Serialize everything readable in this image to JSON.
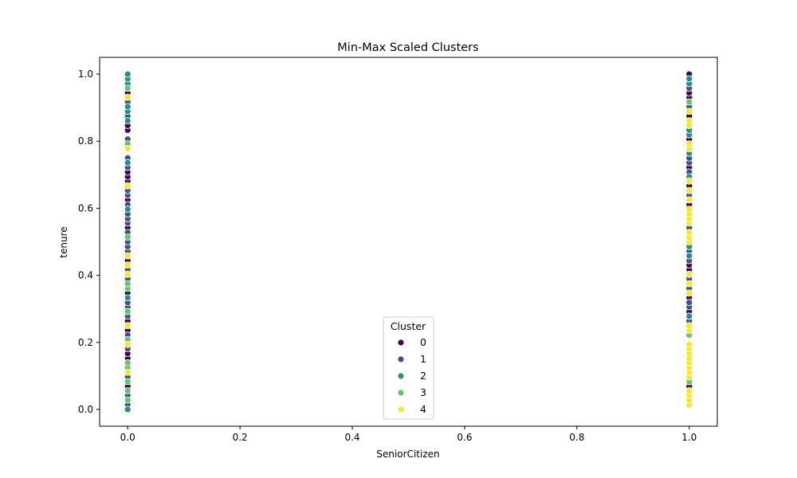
{
  "chart_data": {
    "type": "scatter",
    "title": "Min-Max Scaled Clusters",
    "xlabel": "SeniorCitizen",
    "ylabel": "tenure",
    "xlim": [
      -0.05,
      1.05
    ],
    "ylim": [
      -0.05,
      1.05
    ],
    "xticks": [
      0.0,
      0.2,
      0.4,
      0.6,
      0.8,
      1.0
    ],
    "xtick_labels": [
      "0.0",
      "0.2",
      "0.4",
      "0.6",
      "0.8",
      "1.0"
    ],
    "yticks": [
      0.0,
      0.2,
      0.4,
      0.6,
      0.8,
      1.0
    ],
    "ytick_labels": [
      "0.0",
      "0.2",
      "0.4",
      "0.6",
      "0.8",
      "1.0"
    ],
    "grid": false,
    "legend": {
      "title": "Cluster",
      "placement": "lower-center"
    },
    "series": [
      {
        "name": "0",
        "color": "#440154",
        "points": [
          [
            0,
            0.069
          ],
          [
            0,
            0.153
          ],
          [
            0,
            0.167
          ],
          [
            0,
            0.236
          ],
          [
            0,
            0.264
          ],
          [
            0,
            0.347
          ],
          [
            0,
            0.375
          ],
          [
            0,
            0.403
          ],
          [
            0,
            0.431
          ],
          [
            0,
            0.444
          ],
          [
            0,
            0.514
          ],
          [
            0,
            0.542
          ],
          [
            0,
            0.597
          ],
          [
            0,
            0.625
          ],
          [
            0,
            0.681
          ],
          [
            0,
            0.694
          ],
          [
            0,
            0.708
          ],
          [
            0,
            0.833
          ],
          [
            0,
            0.847
          ],
          [
            0,
            0.931
          ],
          [
            0,
            0.944
          ],
          [
            1,
            0.069
          ],
          [
            1,
            0.139
          ],
          [
            1,
            0.194
          ],
          [
            1,
            0.264
          ],
          [
            1,
            0.292
          ],
          [
            1,
            0.333
          ],
          [
            1,
            0.375
          ],
          [
            1,
            0.417
          ],
          [
            1,
            0.431
          ],
          [
            1,
            0.528
          ],
          [
            1,
            0.611
          ],
          [
            1,
            0.625
          ],
          [
            1,
            0.667
          ],
          [
            1,
            0.694
          ],
          [
            1,
            0.722
          ],
          [
            1,
            0.806
          ],
          [
            1,
            0.861
          ],
          [
            1,
            0.875
          ],
          [
            1,
            0.931
          ],
          [
            1,
            0.944
          ],
          [
            1,
            1.0
          ]
        ]
      },
      {
        "name": "1",
        "color": "#3b528b",
        "points": [
          [
            0,
            0.014
          ],
          [
            0,
            0.042
          ],
          [
            0,
            0.097
          ],
          [
            0,
            0.181
          ],
          [
            0,
            0.222
          ],
          [
            0,
            0.25
          ],
          [
            0,
            0.278
          ],
          [
            0,
            0.306
          ],
          [
            0,
            0.319
          ],
          [
            0,
            0.389
          ],
          [
            0,
            0.417
          ],
          [
            0,
            0.458
          ],
          [
            0,
            0.472
          ],
          [
            0,
            0.486
          ],
          [
            0,
            0.5
          ],
          [
            0,
            0.528
          ],
          [
            0,
            0.556
          ],
          [
            0,
            0.569
          ],
          [
            0,
            0.583
          ],
          [
            0,
            0.611
          ],
          [
            0,
            0.639
          ],
          [
            0,
            0.653
          ],
          [
            0,
            0.722
          ],
          [
            0,
            0.75
          ],
          [
            0,
            0.806
          ],
          [
            0,
            0.875
          ],
          [
            0,
            0.917
          ],
          [
            1,
            0.264
          ],
          [
            1,
            0.278
          ],
          [
            1,
            0.306
          ],
          [
            1,
            0.319
          ],
          [
            1,
            0.361
          ],
          [
            1,
            0.389
          ],
          [
            1,
            0.444
          ],
          [
            1,
            0.472
          ],
          [
            1,
            0.486
          ],
          [
            1,
            0.542
          ],
          [
            1,
            0.639
          ],
          [
            1,
            0.653
          ],
          [
            1,
            0.681
          ],
          [
            1,
            0.708
          ],
          [
            1,
            0.736
          ],
          [
            1,
            0.75
          ],
          [
            1,
            0.778
          ],
          [
            1,
            0.819
          ],
          [
            1,
            0.889
          ],
          [
            1,
            0.903
          ],
          [
            1,
            0.958
          ]
        ]
      },
      {
        "name": "2",
        "color": "#21918c",
        "points": [
          [
            0,
            0.0
          ],
          [
            0,
            0.333
          ],
          [
            0,
            0.597
          ],
          [
            0,
            0.736
          ],
          [
            0,
            0.792
          ],
          [
            0,
            0.861
          ],
          [
            0,
            0.889
          ],
          [
            0,
            0.903
          ],
          [
            0,
            0.958
          ],
          [
            0,
            0.972
          ],
          [
            0,
            0.986
          ],
          [
            0,
            1.0
          ],
          [
            1,
            0.083
          ],
          [
            1,
            0.278
          ],
          [
            1,
            0.458
          ],
          [
            1,
            0.486
          ],
          [
            1,
            0.694
          ],
          [
            1,
            0.764
          ],
          [
            1,
            0.819
          ],
          [
            1,
            0.833
          ],
          [
            1,
            0.917
          ],
          [
            1,
            0.972
          ],
          [
            1,
            0.986
          ]
        ]
      },
      {
        "name": "3",
        "color": "#5ec962",
        "points": [
          [
            0,
            0.028
          ],
          [
            0,
            0.056
          ],
          [
            0,
            0.083
          ],
          [
            0,
            0.125
          ],
          [
            0,
            0.139
          ],
          [
            0,
            0.208
          ],
          [
            0,
            0.292
          ],
          [
            0,
            0.361
          ],
          [
            0,
            0.375
          ],
          [
            0,
            0.514
          ],
          [
            0,
            0.667
          ],
          [
            0,
            0.792
          ],
          [
            0,
            0.958
          ],
          [
            1,
            0.083
          ],
          [
            1,
            0.222
          ],
          [
            1,
            0.917
          ]
        ]
      },
      {
        "name": "4",
        "color": "#fde725",
        "points": [
          [
            0,
            0.111
          ],
          [
            0,
            0.194
          ],
          [
            0,
            0.25
          ],
          [
            0,
            0.403
          ],
          [
            0,
            0.431
          ],
          [
            0,
            0.458
          ],
          [
            0,
            0.667
          ],
          [
            0,
            0.778
          ],
          [
            0,
            0.931
          ],
          [
            1,
            0.014
          ],
          [
            1,
            0.028
          ],
          [
            1,
            0.042
          ],
          [
            1,
            0.056
          ],
          [
            1,
            0.097
          ],
          [
            1,
            0.111
          ],
          [
            1,
            0.125
          ],
          [
            1,
            0.139
          ],
          [
            1,
            0.153
          ],
          [
            1,
            0.167
          ],
          [
            1,
            0.181
          ],
          [
            1,
            0.194
          ],
          [
            1,
            0.236
          ],
          [
            1,
            0.25
          ],
          [
            1,
            0.347
          ],
          [
            1,
            0.375
          ],
          [
            1,
            0.403
          ],
          [
            1,
            0.5
          ],
          [
            1,
            0.514
          ],
          [
            1,
            0.528
          ],
          [
            1,
            0.556
          ],
          [
            1,
            0.569
          ],
          [
            1,
            0.583
          ],
          [
            1,
            0.597
          ],
          [
            1,
            0.625
          ],
          [
            1,
            0.653
          ],
          [
            1,
            0.681
          ],
          [
            1,
            0.778
          ],
          [
            1,
            0.792
          ],
          [
            1,
            0.847
          ],
          [
            1,
            0.861
          ],
          [
            1,
            0.889
          ]
        ]
      }
    ]
  }
}
